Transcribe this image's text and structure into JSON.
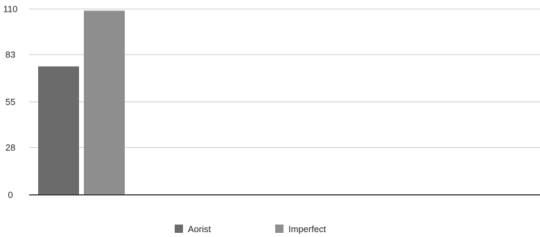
{
  "chart_data": {
    "type": "bar",
    "categories": [
      ""
    ],
    "series": [
      {
        "name": "Aorist",
        "values": [
          76
        ],
        "color": "#6b6b6b"
      },
      {
        "name": "Imperfect",
        "values": [
          109
        ],
        "color": "#8e8e8e"
      }
    ],
    "yticks": [
      0,
      28,
      55,
      83,
      110
    ],
    "ytick_labels": [
      "0",
      "28",
      "55",
      "83",
      "110"
    ],
    "ylim": [
      0,
      110
    ],
    "grid": true,
    "legend_position": "bottom",
    "title": "",
    "xlabel": "",
    "ylabel": ""
  }
}
